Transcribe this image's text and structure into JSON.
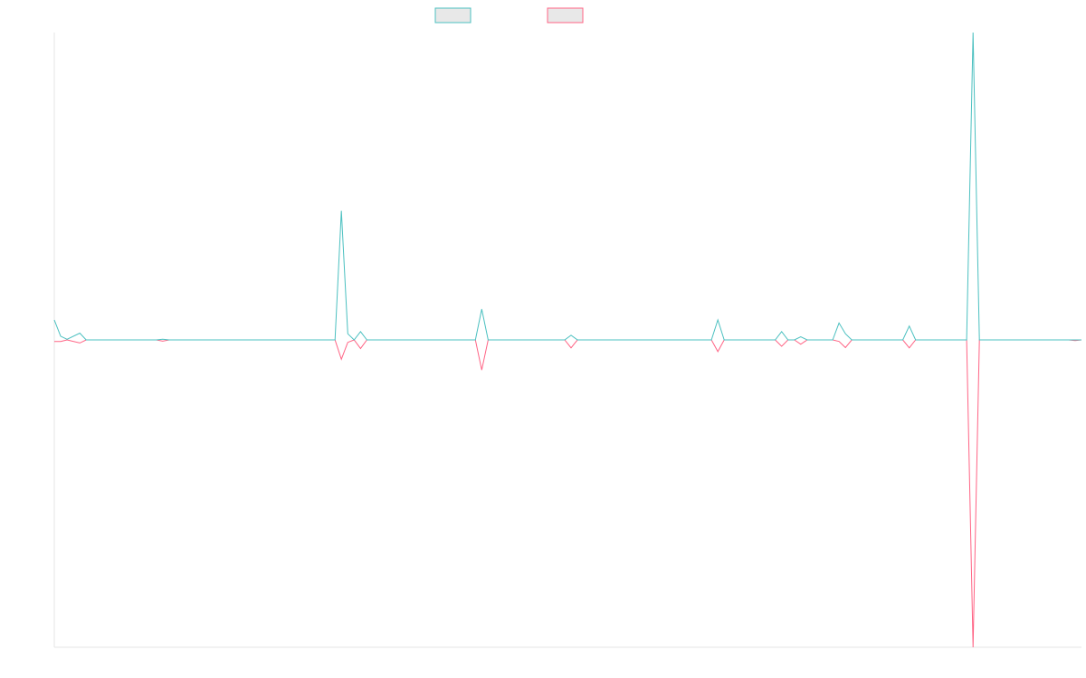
{
  "chart_data": {
    "type": "line",
    "title": "",
    "xlabel": "",
    "ylabel": "",
    "grid": false,
    "legend_position": "top-center",
    "ylim": [
      -100,
      100
    ],
    "xlim": [
      0,
      161
    ],
    "series": [
      {
        "color": "#4bc0c0",
        "legend_fill": "#e8e8e8",
        "points": [
          [
            0,
            6.5
          ],
          [
            1,
            1.2
          ],
          [
            2,
            0.2
          ],
          [
            4,
            2.2
          ],
          [
            5,
            0
          ],
          [
            6,
            0
          ],
          [
            16,
            0
          ],
          [
            17,
            0.2
          ],
          [
            18,
            0
          ],
          [
            44,
            0
          ],
          [
            45,
            42
          ],
          [
            46,
            2
          ],
          [
            47,
            0
          ],
          [
            48,
            2.7
          ],
          [
            49,
            0
          ],
          [
            66,
            0
          ],
          [
            67,
            10
          ],
          [
            68,
            0
          ],
          [
            80,
            0
          ],
          [
            81,
            1.5
          ],
          [
            82,
            0
          ],
          [
            103,
            0
          ],
          [
            104,
            6.5
          ],
          [
            105,
            0
          ],
          [
            113,
            0
          ],
          [
            114,
            2.7
          ],
          [
            115,
            0
          ],
          [
            116,
            0
          ],
          [
            117,
            1
          ],
          [
            118,
            0
          ],
          [
            122,
            0
          ],
          [
            123,
            5.5
          ],
          [
            124,
            2
          ],
          [
            125,
            0
          ],
          [
            133,
            0
          ],
          [
            134,
            4.5
          ],
          [
            135,
            0
          ],
          [
            143,
            0
          ],
          [
            144,
            100
          ],
          [
            145,
            0
          ],
          [
            161,
            0
          ]
        ]
      },
      {
        "color": "#ff6384",
        "legend_fill": "#e8e8e8",
        "points": [
          [
            0,
            -0.5
          ],
          [
            1,
            -0.5
          ],
          [
            2,
            0
          ],
          [
            4,
            -1
          ],
          [
            5,
            0
          ],
          [
            16,
            0
          ],
          [
            17,
            -0.4
          ],
          [
            18,
            0
          ],
          [
            44,
            0
          ],
          [
            45,
            -6.3
          ],
          [
            46,
            -0.8
          ],
          [
            47,
            0
          ],
          [
            48,
            -2.8
          ],
          [
            49,
            0
          ],
          [
            66,
            0
          ],
          [
            67,
            -9.8
          ],
          [
            68,
            0
          ],
          [
            80,
            0
          ],
          [
            81,
            -2.6
          ],
          [
            82,
            0
          ],
          [
            103,
            0
          ],
          [
            104,
            -3.8
          ],
          [
            105,
            0
          ],
          [
            113,
            0
          ],
          [
            114,
            -2.1
          ],
          [
            115,
            0
          ],
          [
            116,
            0
          ],
          [
            117,
            -1.4
          ],
          [
            118,
            0
          ],
          [
            122,
            0
          ],
          [
            123,
            -0.5
          ],
          [
            124,
            -2.5
          ],
          [
            125,
            0
          ],
          [
            133,
            0
          ],
          [
            134,
            -2.6
          ],
          [
            135,
            0
          ],
          [
            143,
            0
          ],
          [
            144,
            -100
          ],
          [
            145,
            0
          ],
          [
            159,
            0
          ],
          [
            160,
            -0.2
          ],
          [
            161,
            0
          ]
        ]
      }
    ]
  }
}
